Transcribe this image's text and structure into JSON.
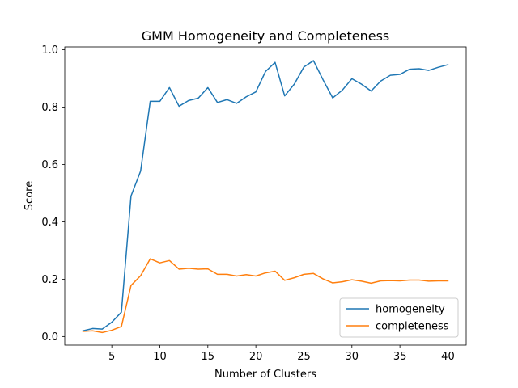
{
  "chart_data": {
    "type": "line",
    "title": "GMM Homogeneity and Completeness",
    "xlabel": "Number of Clusters",
    "ylabel": "Score",
    "xlim": [
      0.1,
      41.9
    ],
    "ylim": [
      -0.03,
      1.01
    ],
    "xticks": [
      5,
      10,
      15,
      20,
      25,
      30,
      35,
      40
    ],
    "yticks": [
      0.0,
      0.2,
      0.4,
      0.6,
      0.8,
      1.0
    ],
    "xtick_labels": [
      "5",
      "10",
      "15",
      "20",
      "25",
      "30",
      "35",
      "40"
    ],
    "ytick_labels": [
      "0.0",
      "0.2",
      "0.4",
      "0.6",
      "0.8",
      "1.0"
    ],
    "grid": false,
    "legend_position": "lower-right",
    "x": [
      2,
      3,
      4,
      5,
      6,
      7,
      8,
      9,
      10,
      11,
      12,
      13,
      14,
      15,
      16,
      17,
      18,
      19,
      20,
      21,
      22,
      23,
      24,
      25,
      26,
      27,
      28,
      29,
      30,
      31,
      32,
      33,
      34,
      35,
      36,
      37,
      38,
      39,
      40
    ],
    "series": [
      {
        "name": "homogeneity",
        "color": "#1f77b4",
        "values": [
          0.02,
          0.028,
          0.026,
          0.05,
          0.085,
          0.49,
          0.577,
          0.82,
          0.82,
          0.868,
          0.803,
          0.823,
          0.831,
          0.868,
          0.816,
          0.826,
          0.813,
          0.836,
          0.853,
          0.924,
          0.956,
          0.839,
          0.88,
          0.94,
          0.962,
          0.895,
          0.832,
          0.859,
          0.899,
          0.88,
          0.856,
          0.891,
          0.911,
          0.914,
          0.932,
          0.934,
          0.928,
          0.939,
          0.948
        ]
      },
      {
        "name": "completeness",
        "color": "#ff7f0e",
        "values": [
          0.018,
          0.02,
          0.014,
          0.022,
          0.035,
          0.178,
          0.212,
          0.271,
          0.257,
          0.265,
          0.235,
          0.238,
          0.235,
          0.236,
          0.217,
          0.217,
          0.211,
          0.216,
          0.211,
          0.222,
          0.228,
          0.196,
          0.205,
          0.217,
          0.22,
          0.201,
          0.187,
          0.191,
          0.198,
          0.193,
          0.186,
          0.194,
          0.195,
          0.194,
          0.197,
          0.197,
          0.193,
          0.194,
          0.194
        ]
      }
    ]
  }
}
